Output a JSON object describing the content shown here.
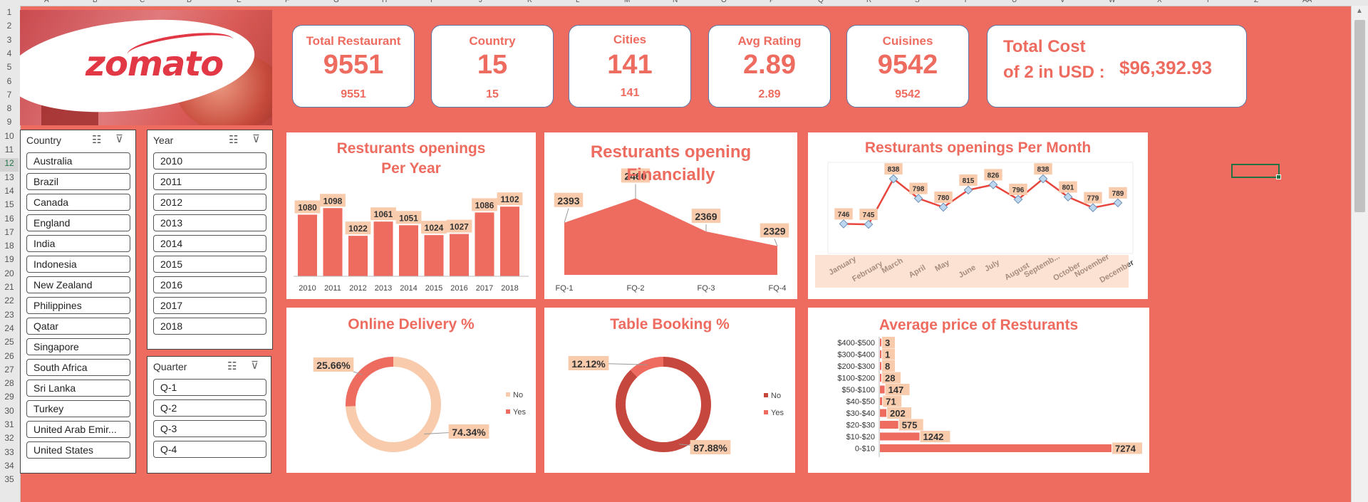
{
  "sheet": {
    "columns": [
      "A",
      "B",
      "C",
      "D",
      "E",
      "F",
      "G",
      "H",
      "I",
      "J",
      "K",
      "L",
      "M",
      "N",
      "O",
      "P",
      "Q",
      "R",
      "S",
      "T",
      "U",
      "V",
      "W",
      "X",
      "Y",
      "Z",
      "AA"
    ],
    "rows": [
      "1",
      "2",
      "3",
      "4",
      "5",
      "6",
      "7",
      "8",
      "9",
      "10",
      "11",
      "12",
      "13",
      "14",
      "15",
      "16",
      "17",
      "18",
      "19",
      "20",
      "21",
      "22",
      "23",
      "24",
      "25",
      "26",
      "27",
      "28",
      "29",
      "30",
      "31",
      "32",
      "33",
      "34",
      "35"
    ]
  },
  "logo": {
    "text": "zomato"
  },
  "kpis": [
    {
      "label": "Total Restaurant",
      "value": "9551",
      "sub": "9551"
    },
    {
      "label": "Country",
      "value": "15",
      "sub": "15"
    },
    {
      "label": "Cities",
      "value": "141",
      "sub": "141"
    },
    {
      "label": "Avg Rating",
      "value": "2.89",
      "sub": "2.89"
    },
    {
      "label": "Cuisines",
      "value": "9542",
      "sub": "9542"
    }
  ],
  "total_cost": {
    "line1": "Total Cost",
    "line2": "of 2 in USD :",
    "value": "$96,392.93"
  },
  "slicers": {
    "country": {
      "title": "Country",
      "items": [
        "Australia",
        "Brazil",
        "Canada",
        "England",
        "India",
        "Indonesia",
        "New Zealand",
        "Philippines",
        "Qatar",
        "Singapore",
        "South Africa",
        "Sri Lanka",
        "Turkey",
        "United Arab Emir...",
        "United States"
      ]
    },
    "year": {
      "title": "Year",
      "items": [
        "2010",
        "2011",
        "2012",
        "2013",
        "2014",
        "2015",
        "2016",
        "2017",
        "2018"
      ]
    },
    "quarter": {
      "title": "Quarter",
      "items": [
        "Q-1",
        "Q-2",
        "Q-3",
        "Q-4"
      ]
    }
  },
  "colors": {
    "accent": "#ee6b5f",
    "bar": "#ee6b5f",
    "label_bg": "#f8cbad",
    "donut_light": "#f8cbad",
    "donut_dark": "#c6473d",
    "marker": "#bdd7ee"
  },
  "chart_data": [
    {
      "type": "bar",
      "title_line1": "Resturants openings",
      "title_line2": "Per Year",
      "categories": [
        "2010",
        "2011",
        "2012",
        "2013",
        "2014",
        "2015",
        "2016",
        "2017",
        "2018"
      ],
      "values": [
        1080,
        1098,
        1022,
        1061,
        1051,
        1024,
        1027,
        1086,
        1102
      ]
    },
    {
      "type": "area",
      "title_line1": "Resturants opening",
      "title_line2": "Financially",
      "categories": [
        "FQ-1",
        "FQ-2",
        "FQ-3",
        "FQ-4"
      ],
      "values": [
        2393,
        2460,
        2369,
        2329
      ]
    },
    {
      "type": "line",
      "title": "Resturants openings Per Month",
      "categories": [
        "January",
        "February",
        "March",
        "April",
        "May",
        "June",
        "July",
        "August",
        "Septemb...",
        "October",
        "November",
        "December"
      ],
      "values": [
        746,
        745,
        838,
        798,
        780,
        815,
        826,
        796,
        838,
        801,
        779,
        789
      ]
    },
    {
      "type": "pie",
      "title": "Online Delivery %",
      "labels": [
        "No",
        "Yes"
      ],
      "values": [
        74.34,
        25.66
      ],
      "data_labels": [
        "74.34%",
        "25.66%"
      ]
    },
    {
      "type": "pie",
      "title": "Table Booking %",
      "labels": [
        "No",
        "Yes"
      ],
      "values": [
        87.88,
        12.12
      ],
      "data_labels": [
        "87.88%",
        "12.12%"
      ]
    },
    {
      "type": "bar",
      "orientation": "horizontal",
      "title": "Average price of Resturants",
      "categories": [
        "$400-$500",
        "$300-$400",
        "$200-$300",
        "$100-$200",
        "$50-$100",
        "$40-$50",
        "$30-$40",
        "$20-$30",
        "$10-$20",
        "0-$10"
      ],
      "values": [
        3,
        1,
        8,
        28,
        147,
        71,
        202,
        575,
        1242,
        7274
      ]
    }
  ]
}
